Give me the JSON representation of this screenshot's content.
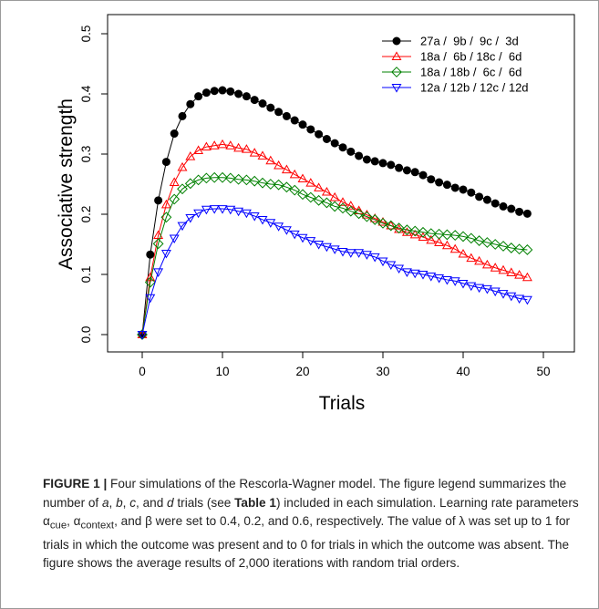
{
  "chart_data": {
    "type": "line",
    "xlabel": "Trials",
    "ylabel": "Associative strength",
    "xlim": [
      0,
      48
    ],
    "ylim": [
      0,
      0.5
    ],
    "x_ticks": [
      "0",
      "10",
      "20",
      "30",
      "40",
      "50"
    ],
    "y_ticks": [
      "0.0",
      "0.1",
      "0.2",
      "0.3",
      "0.4",
      "0.5"
    ],
    "grid": false,
    "legend_position": "top-right",
    "series": [
      {
        "name": "27a /  9b /  9c /  3d",
        "color": "#000000",
        "marker": "filled-circle",
        "values": [
          0.0,
          0.133,
          0.223,
          0.287,
          0.334,
          0.363,
          0.383,
          0.396,
          0.402,
          0.405,
          0.406,
          0.404,
          0.4,
          0.396,
          0.39,
          0.384,
          0.377,
          0.37,
          0.363,
          0.356,
          0.349,
          0.341,
          0.333,
          0.325,
          0.318,
          0.311,
          0.304,
          0.297,
          0.291,
          0.288,
          0.285,
          0.282,
          0.277,
          0.273,
          0.27,
          0.265,
          0.258,
          0.253,
          0.249,
          0.244,
          0.241,
          0.236,
          0.229,
          0.224,
          0.218,
          0.213,
          0.209,
          0.204,
          0.201
        ]
      },
      {
        "name": "18a /  6b / 18c /  6d",
        "color": "#ff0000",
        "marker": "open-triangle-up",
        "values": [
          0.0,
          0.095,
          0.165,
          0.216,
          0.253,
          0.278,
          0.296,
          0.306,
          0.312,
          0.314,
          0.316,
          0.314,
          0.31,
          0.308,
          0.302,
          0.297,
          0.289,
          0.281,
          0.274,
          0.266,
          0.259,
          0.252,
          0.244,
          0.237,
          0.228,
          0.22,
          0.214,
          0.206,
          0.199,
          0.193,
          0.187,
          0.181,
          0.175,
          0.17,
          0.166,
          0.162,
          0.157,
          0.153,
          0.148,
          0.142,
          0.134,
          0.127,
          0.122,
          0.116,
          0.111,
          0.107,
          0.103,
          0.099,
          0.095
        ]
      },
      {
        "name": "18a / 18b /  6c /  6d",
        "color": "#008000",
        "marker": "open-diamond",
        "values": [
          0.0,
          0.087,
          0.151,
          0.195,
          0.225,
          0.242,
          0.251,
          0.257,
          0.26,
          0.261,
          0.261,
          0.26,
          0.258,
          0.257,
          0.255,
          0.252,
          0.25,
          0.249,
          0.245,
          0.24,
          0.233,
          0.228,
          0.223,
          0.219,
          0.213,
          0.21,
          0.205,
          0.201,
          0.196,
          0.191,
          0.185,
          0.181,
          0.177,
          0.174,
          0.172,
          0.17,
          0.168,
          0.167,
          0.166,
          0.165,
          0.163,
          0.16,
          0.156,
          0.153,
          0.15,
          0.147,
          0.144,
          0.142,
          0.141
        ]
      },
      {
        "name": "12a / 12b / 12c / 12d",
        "color": "#0000ff",
        "marker": "open-triangle-down",
        "values": [
          0.0,
          0.061,
          0.104,
          0.135,
          0.16,
          0.181,
          0.194,
          0.202,
          0.208,
          0.209,
          0.209,
          0.208,
          0.205,
          0.202,
          0.197,
          0.191,
          0.186,
          0.18,
          0.174,
          0.167,
          0.161,
          0.156,
          0.15,
          0.146,
          0.142,
          0.138,
          0.136,
          0.136,
          0.133,
          0.129,
          0.122,
          0.116,
          0.11,
          0.104,
          0.102,
          0.1,
          0.097,
          0.094,
          0.091,
          0.089,
          0.085,
          0.081,
          0.078,
          0.076,
          0.072,
          0.068,
          0.064,
          0.06,
          0.058
        ]
      }
    ]
  },
  "caption": {
    "label": "FIGURE 1 |",
    "segments": [
      {
        "t": " Four simulations of the Rescorla-Wagner model. The figure legend summarizes the number of ",
        "s": "n"
      },
      {
        "t": "a",
        "s": "i"
      },
      {
        "t": ", ",
        "s": "n"
      },
      {
        "t": "b",
        "s": "i"
      },
      {
        "t": ", ",
        "s": "n"
      },
      {
        "t": "c",
        "s": "i"
      },
      {
        "t": ", and ",
        "s": "n"
      },
      {
        "t": "d",
        "s": "i"
      },
      {
        "t": " trials (see ",
        "s": "n"
      },
      {
        "t": "Table 1",
        "s": "b"
      },
      {
        "t": ") included in each simulation. Learning rate parameters α",
        "s": "n"
      },
      {
        "t": "cue",
        "s": "sub"
      },
      {
        "t": ", α",
        "s": "n"
      },
      {
        "t": "context",
        "s": "sub"
      },
      {
        "t": ", and β were set to 0.4, 0.2, and 0.6, respectively. The value of λ was set up to 1 for trials in which the outcome was present and to 0 for trials in which the outcome was absent. The figure shows the average results of 2,000 iterations with random trial orders.",
        "s": "n"
      }
    ]
  }
}
